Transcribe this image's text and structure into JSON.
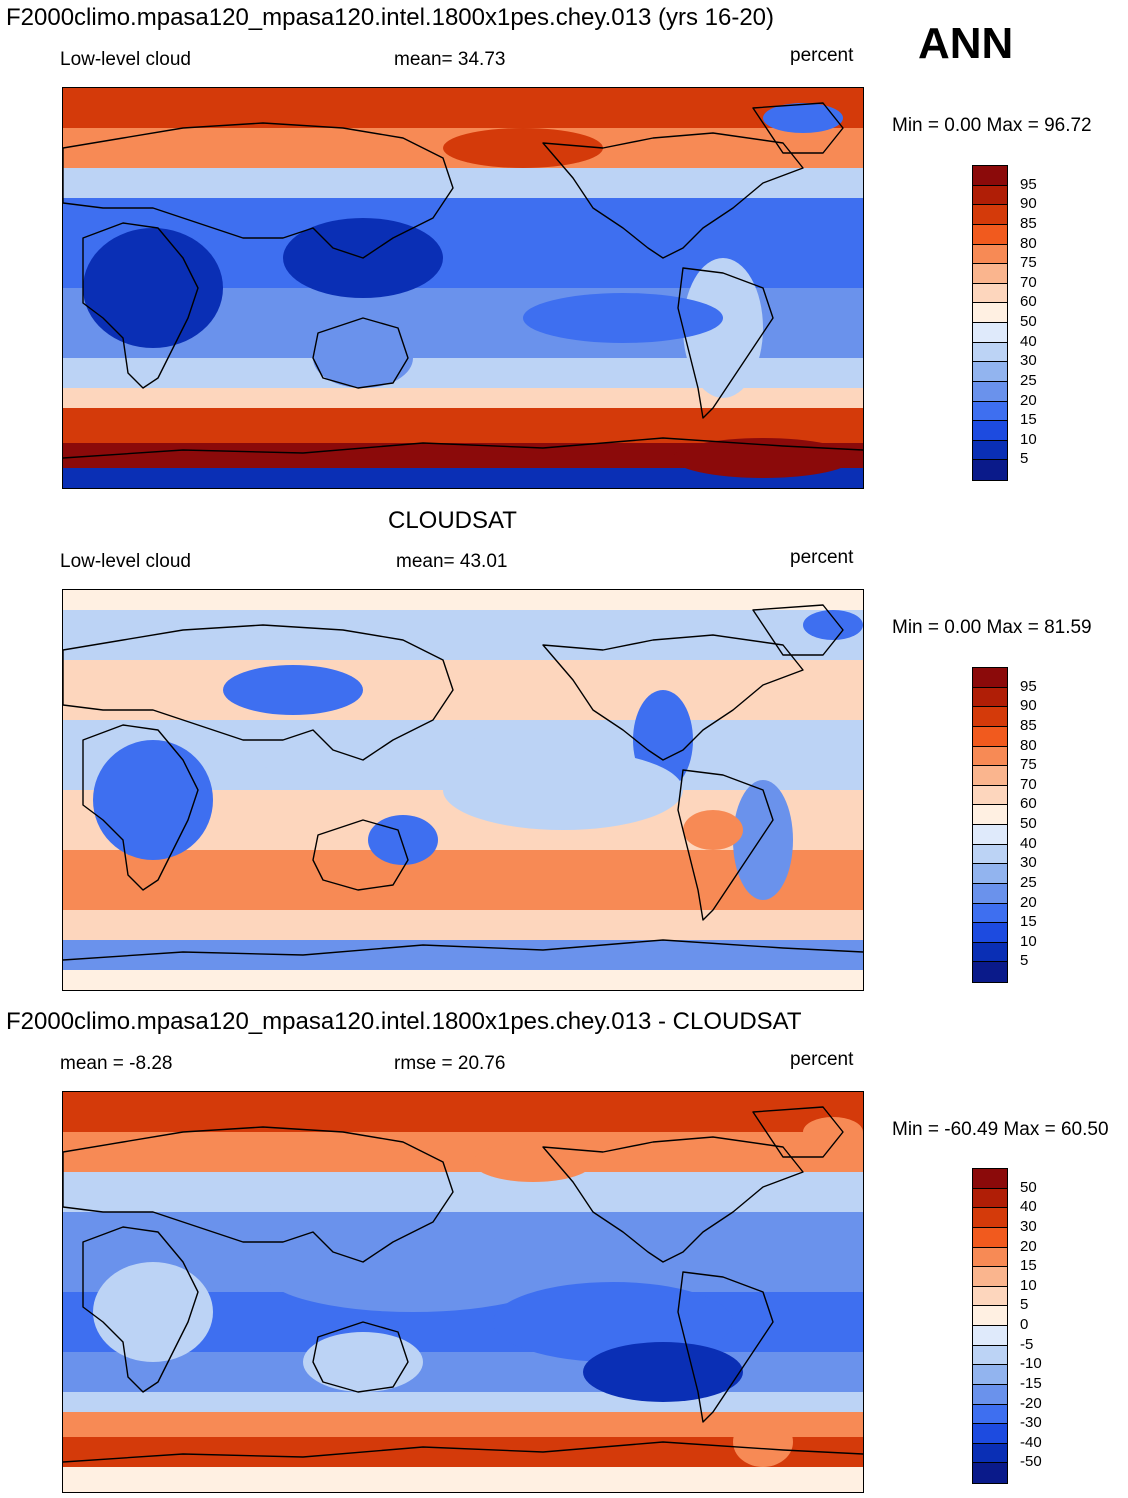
{
  "season": "ANN",
  "panels": [
    {
      "title": "F2000climo.mpasa120_mpasa120.intel.1800x1pes.chey.013 (yrs 16-20)",
      "left_label": "Low-level cloud",
      "center_label": "mean=  34.73",
      "right_label": "percent",
      "minmax": "Min =   0.00 Max =  96.72",
      "fill_style": "model",
      "colorbar": {
        "ticks": [
          "95",
          "90",
          "85",
          "80",
          "75",
          "70",
          "60",
          "50",
          "40",
          "30",
          "25",
          "20",
          "15",
          "10",
          "5"
        ],
        "colors": [
          "#8b0a0a",
          "#b01e06",
          "#d43a0a",
          "#f15a1e",
          "#f78a55",
          "#fab58e",
          "#fdd6bd",
          "#fff0e2",
          "#dfeafb",
          "#bcd3f5",
          "#92b4ef",
          "#6a92ec",
          "#3e6ff0",
          "#1d4be0",
          "#0a2fb5",
          "#0a1a8a"
        ]
      }
    },
    {
      "title": "CLOUDSAT",
      "left_label": "Low-level cloud",
      "center_label": "mean=  43.01",
      "right_label": "percent",
      "minmax": "Min =   0.00 Max =  81.59",
      "fill_style": "obs",
      "colorbar": {
        "ticks": [
          "95",
          "90",
          "85",
          "80",
          "75",
          "70",
          "60",
          "50",
          "40",
          "30",
          "25",
          "20",
          "15",
          "10",
          "5"
        ],
        "colors": [
          "#8b0a0a",
          "#b01e06",
          "#d43a0a",
          "#f15a1e",
          "#f78a55",
          "#fab58e",
          "#fdd6bd",
          "#fff0e2",
          "#dfeafb",
          "#bcd3f5",
          "#92b4ef",
          "#6a92ec",
          "#3e6ff0",
          "#1d4be0",
          "#0a2fb5",
          "#0a1a8a"
        ]
      }
    },
    {
      "title": "F2000climo.mpasa120_mpasa120.intel.1800x1pes.chey.013 - CLOUDSAT",
      "left_label": "mean =  -8.28",
      "center_label": "rmse =  20.76",
      "right_label": "percent",
      "minmax": "Min = -60.49 Max =  60.50",
      "fill_style": "diff",
      "colorbar": {
        "ticks": [
          "50",
          "40",
          "30",
          "20",
          "15",
          "10",
          "5",
          "0",
          "-5",
          "-10",
          "-15",
          "-20",
          "-30",
          "-40",
          "-50"
        ],
        "colors": [
          "#8b0a0a",
          "#b01e06",
          "#d43a0a",
          "#f15a1e",
          "#f78a55",
          "#fab58e",
          "#fdd6bd",
          "#fff0e2",
          "#dfeafb",
          "#bcd3f5",
          "#92b4ef",
          "#6a92ec",
          "#3e6ff0",
          "#1d4be0",
          "#0a2fb5",
          "#0a1a8a"
        ]
      }
    }
  ]
}
